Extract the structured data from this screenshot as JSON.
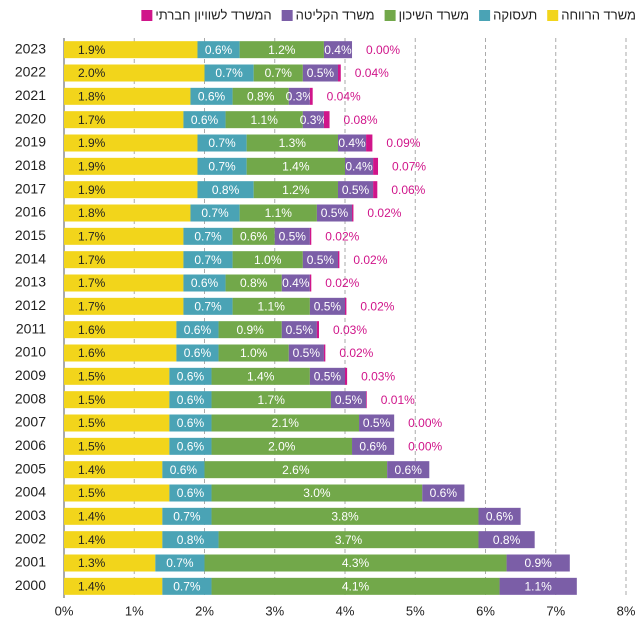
{
  "chart_data": {
    "type": "stacked_bar_horizontal",
    "categories": [
      "2023",
      "2022",
      "2021",
      "2020",
      "2019",
      "2018",
      "2017",
      "2016",
      "2015",
      "2014",
      "2013",
      "2012",
      "2011",
      "2010",
      "2009",
      "2008",
      "2007",
      "2006",
      "2005",
      "2004",
      "2003",
      "2002",
      "2001",
      "2000"
    ],
    "series": [
      {
        "name": "משרד הרווחה",
        "color": "#f2d51b",
        "label_color": "#222222",
        "values": [
          1.9,
          2.0,
          1.8,
          1.7,
          1.9,
          1.9,
          1.9,
          1.8,
          1.7,
          1.7,
          1.7,
          1.7,
          1.6,
          1.6,
          1.5,
          1.5,
          1.5,
          1.5,
          1.4,
          1.5,
          1.4,
          1.4,
          1.3,
          1.4
        ],
        "value_labels": [
          "1.9%",
          "2.0%",
          "1.8%",
          "1.7%",
          "1.9%",
          "1.9%",
          "1.9%",
          "1.8%",
          "1.7%",
          "1.7%",
          "1.7%",
          "1.7%",
          "1.6%",
          "1.6%",
          "1.5%",
          "1.5%",
          "1.5%",
          "1.5%",
          "1.4%",
          "1.5%",
          "1.4%",
          "1.4%",
          "1.3%",
          "1.4%"
        ]
      },
      {
        "name": "תעסוקה",
        "color": "#4aa3b5",
        "label_color": "#ffffff",
        "values": [
          0.6,
          0.7,
          0.6,
          0.6,
          0.7,
          0.7,
          0.8,
          0.7,
          0.7,
          0.7,
          0.6,
          0.7,
          0.6,
          0.6,
          0.6,
          0.6,
          0.6,
          0.6,
          0.6,
          0.6,
          0.7,
          0.8,
          0.7,
          0.7
        ],
        "value_labels": [
          "0.6%",
          "0.7%",
          "0.6%",
          "0.6%",
          "0.7%",
          "0.7%",
          "0.8%",
          "0.7%",
          "0.7%",
          "0.7%",
          "0.6%",
          "0.7%",
          "0.6%",
          "0.6%",
          "0.6%",
          "0.6%",
          "0.6%",
          "0.6%",
          "0.6%",
          "0.6%",
          "0.7%",
          "0.8%",
          "0.7%",
          "0.7%"
        ]
      },
      {
        "name": "משרד השיכון",
        "color": "#72a84a",
        "label_color": "#ffffff",
        "values": [
          1.2,
          0.7,
          0.8,
          1.1,
          1.3,
          1.4,
          1.2,
          1.1,
          0.6,
          1.0,
          0.8,
          1.1,
          0.9,
          1.0,
          1.4,
          1.7,
          2.1,
          2.0,
          2.6,
          3.0,
          3.8,
          3.7,
          4.3,
          4.1
        ],
        "value_labels": [
          "1.2%",
          "0.7%",
          "0.8%",
          "1.1%",
          "1.3%",
          "1.4%",
          "1.2%",
          "1.1%",
          "0.6%",
          "1.0%",
          "0.8%",
          "1.1%",
          "0.9%",
          "1.0%",
          "1.4%",
          "1.7%",
          "2.1%",
          "2.0%",
          "2.6%",
          "3.0%",
          "3.8%",
          "3.7%",
          "4.3%",
          "4.1%"
        ]
      },
      {
        "name": "משרד הקליטה",
        "color": "#7b5ea7",
        "label_color": "#ffffff",
        "values": [
          0.4,
          0.5,
          0.3,
          0.3,
          0.4,
          0.4,
          0.5,
          0.5,
          0.5,
          0.5,
          0.4,
          0.5,
          0.5,
          0.5,
          0.5,
          0.5,
          0.5,
          0.6,
          0.6,
          0.6,
          0.6,
          0.8,
          0.9,
          1.1
        ],
        "value_labels": [
          "0.4%",
          "0.5%",
          "0.3%",
          "0.3%",
          "0.4%",
          "0.4%",
          "0.5%",
          "0.5%",
          "0.5%",
          "0.5%",
          "0.4%",
          "0.5%",
          "0.5%",
          "0.5%",
          "0.5%",
          "0.5%",
          "0.5%",
          "0.6%",
          "0.6%",
          "0.6%",
          "0.6%",
          "0.8%",
          "0.9%",
          "1.1%"
        ]
      },
      {
        "name": "המשרד לשוויון חברתי",
        "color": "#d0158a",
        "label_color": "#d0158a",
        "values": [
          0.0,
          0.04,
          0.04,
          0.08,
          0.09,
          0.07,
          0.06,
          0.02,
          0.02,
          0.02,
          0.02,
          0.02,
          0.03,
          0.02,
          0.03,
          0.01,
          0.0,
          0.0,
          null,
          null,
          null,
          null,
          null,
          null
        ],
        "value_labels": [
          "0.00%",
          "0.04%",
          "0.04%",
          "0.08%",
          "0.09%",
          "0.07%",
          "0.06%",
          "0.02%",
          "0.02%",
          "0.02%",
          "0.02%",
          "0.02%",
          "0.03%",
          "0.02%",
          "0.03%",
          "0.01%",
          "0.00%",
          "0.00%",
          null,
          null,
          null,
          null,
          null,
          null
        ]
      }
    ],
    "xlim": [
      0,
      8
    ],
    "xticks": [
      {
        "value": 0,
        "label": "0%"
      },
      {
        "value": 1,
        "label": "1%"
      },
      {
        "value": 2,
        "label": "2%"
      },
      {
        "value": 3,
        "label": "3%"
      },
      {
        "value": 4,
        "label": "4%"
      },
      {
        "value": 5,
        "label": "5%"
      },
      {
        "value": 6,
        "label": "6%"
      },
      {
        "value": 7,
        "label": "7%"
      },
      {
        "value": 8,
        "label": "8%"
      }
    ],
    "grid": true,
    "legend": "top"
  }
}
